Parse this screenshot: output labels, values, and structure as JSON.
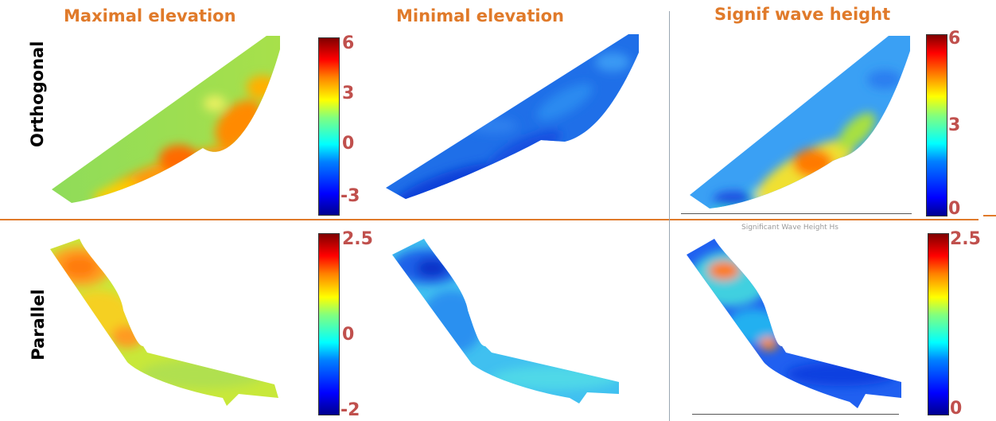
{
  "columns": {
    "max_elev": "Maximal elevation",
    "min_elev": "Minimal elevation",
    "signif": "Signif wave height"
  },
  "rows": {
    "orthogonal": "Orthogonal",
    "parallel": "Parallel"
  },
  "colorbars": {
    "ortho_elev": [
      "6",
      "3",
      "0",
      "-3"
    ],
    "ortho_sig": [
      "6",
      "3",
      "0"
    ],
    "par_elev": [
      "2.5",
      "0",
      "-2"
    ],
    "par_sig": [
      "2.5",
      "0"
    ]
  },
  "faint_text": {
    "axis_label": "Significant Wave Height Hs"
  },
  "colors": {
    "accent": "#e07a2a",
    "tick_label": "#c0504d",
    "divider": "#9aa6b2"
  }
}
